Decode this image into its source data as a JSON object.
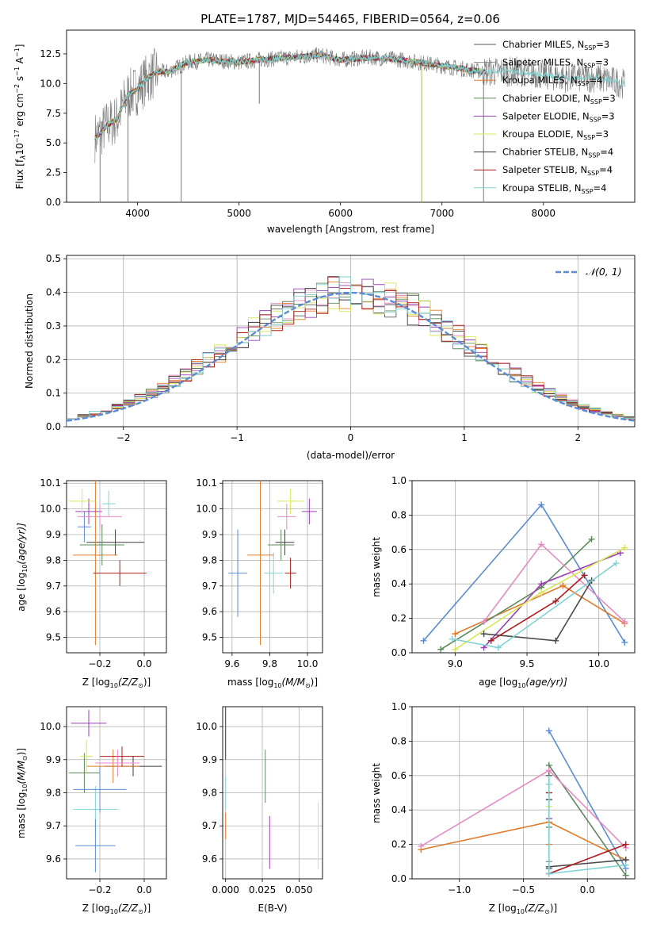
{
  "figure": {
    "title": "PLATE=1787, MJD=54465, FIBERID=0564, z=0.06"
  },
  "colors": {
    "series": [
      "#5a5a5a",
      "#8c8c8c",
      "#e07b2a",
      "#5b8a5b",
      "#9b3fb5",
      "#d9e85a",
      "#3a3a3a",
      "#b01c1c",
      "#7fd3d3"
    ],
    "normal": "#5b8bd6"
  },
  "chart_data": [
    {
      "id": "spectrum",
      "type": "line",
      "xlabel": "wavelength [Angstrom, rest frame]",
      "ylabel": "Flux [f",
      "ylabel_tail": "10",
      "ylabel_exp": "−17",
      "ylabel_end": " erg cm",
      "xlim": [
        3300,
        8900
      ],
      "ylim": [
        0,
        14.5
      ],
      "xticks": [
        4000,
        5000,
        6000,
        7000,
        8000
      ],
      "yticks": [
        0.0,
        2.5,
        5.0,
        7.5,
        10.0,
        12.5
      ],
      "legend_placement": "right",
      "legend": [
        {
          "name": "Chabrier MILES",
          "n": "3"
        },
        {
          "name": "Salpeter MILES",
          "n": "3"
        },
        {
          "name": "Kroupa MILES",
          "n": "4"
        },
        {
          "name": "Chabrier ELODIE",
          "n": "3"
        },
        {
          "name": "Salpeter ELODIE",
          "n": "3"
        },
        {
          "name": "Kroupa ELODIE",
          "n": "3"
        },
        {
          "name": "Chabrier STELIB",
          "n": "4"
        },
        {
          "name": "Salpeter STELIB",
          "n": "4"
        },
        {
          "name": "Kroupa STELIB",
          "n": "4"
        }
      ],
      "data_anchor_x": [
        3600,
        3700,
        3800,
        3900,
        4000,
        4100,
        4200,
        4300,
        4500,
        4700,
        5000,
        5200,
        5500,
        5800,
        6000,
        6300,
        6600,
        7000,
        7400,
        7800,
        8200,
        8500,
        8800
      ],
      "data_anchor_y": [
        5.5,
        6.5,
        7.0,
        9.0,
        9.5,
        10.5,
        11.0,
        11.0,
        11.8,
        12.0,
        11.8,
        12.0,
        12.2,
        12.4,
        12.0,
        12.2,
        12.0,
        11.5,
        11.0,
        11.0,
        10.5,
        10.5,
        10.0
      ]
    },
    {
      "id": "residuals",
      "type": "line",
      "xlabel": "(data-model)/error",
      "ylabel": "Normed distribution",
      "xlim": [
        -2.5,
        2.5
      ],
      "ylim": [
        0,
        0.51
      ],
      "xticks": [
        -2,
        -1,
        0,
        1,
        2
      ],
      "yticks": [
        0.0,
        0.1,
        0.2,
        0.3,
        0.4,
        0.5
      ],
      "grid": true,
      "legend_placement": "top-right",
      "legend_label": "𝒩(0, 1)",
      "bins": 50
    },
    {
      "id": "age-vs-Z",
      "type": "scatter",
      "xlabel": "Z [log",
      "xlabel_tail": "(Z/Z",
      "ylabel": "age  [log",
      "ylabel_tail": "(age/yr)]",
      "xlim": [
        -0.35,
        0.1
      ],
      "ylim": [
        9.44,
        10.11
      ],
      "xticks": [
        -0.2,
        0.0
      ],
      "yticks": [
        9.5,
        9.6,
        9.7,
        9.8,
        9.9,
        10.0,
        10.1
      ],
      "grid": true,
      "points": [
        {
          "x": -0.13,
          "y": 9.87,
          "xerr": 0.13,
          "yerr": 0.05
        },
        {
          "x": -0.16,
          "y": 10.02,
          "xerr": 0.03,
          "yerr": 0.05
        },
        {
          "x": -0.22,
          "y": 9.82,
          "xerr": 0.1,
          "yerr": 0.35
        },
        {
          "x": -0.19,
          "y": 9.86,
          "xerr": 0.1,
          "yerr": 0.08
        },
        {
          "x": -0.25,
          "y": 9.99,
          "xerr": 0.06,
          "yerr": 0.05
        },
        {
          "x": -0.28,
          "y": 10.03,
          "xerr": 0.06,
          "yerr": 0.05
        },
        {
          "x": -0.27,
          "y": 9.93,
          "xerr": 0.03,
          "yerr": 0.06
        },
        {
          "x": -0.11,
          "y": 9.75,
          "xerr": 0.12,
          "yerr": 0.05
        },
        {
          "x": -0.2,
          "y": 9.97,
          "xerr": 0.1,
          "yerr": 0.05
        }
      ]
    },
    {
      "id": "age-vs-mass",
      "type": "scatter",
      "xlabel": "mass [log",
      "xlabel_tail": "(M/M",
      "xlim": [
        9.55,
        10.08
      ],
      "ylim": [
        9.44,
        10.11
      ],
      "xticks": [
        9.6,
        9.8,
        10.0
      ],
      "yticks": [
        9.5,
        9.6,
        9.7,
        9.8,
        9.9,
        10.0,
        10.1
      ],
      "grid": true,
      "points": [
        {
          "x": 9.88,
          "y": 9.87,
          "xerr": 0.05,
          "yerr": 0.05
        },
        {
          "x": 9.82,
          "y": 9.75,
          "xerr": 0.05,
          "yerr": 0.08
        },
        {
          "x": 9.75,
          "y": 9.82,
          "xerr": 0.07,
          "yerr": 0.35
        },
        {
          "x": 9.86,
          "y": 9.86,
          "xerr": 0.07,
          "yerr": 0.06
        },
        {
          "x": 10.01,
          "y": 9.99,
          "xerr": 0.04,
          "yerr": 0.05
        },
        {
          "x": 9.91,
          "y": 10.03,
          "xerr": 0.07,
          "yerr": 0.05
        },
        {
          "x": 9.63,
          "y": 9.75,
          "xerr": 0.05,
          "yerr": 0.17
        },
        {
          "x": 9.91,
          "y": 9.75,
          "xerr": 0.03,
          "yerr": 0.06
        },
        {
          "x": 9.89,
          "y": 9.97,
          "xerr": 0.05,
          "yerr": 0.05
        }
      ]
    },
    {
      "id": "weight-vs-age",
      "type": "line",
      "xlabel": "age  [log",
      "xlabel_tail": "(age/yr)]",
      "ylabel": "mass weight",
      "xlim": [
        8.7,
        10.25
      ],
      "ylim": [
        0,
        1.0
      ],
      "xticks": [
        9.0,
        9.5,
        10.0
      ],
      "yticks": [
        0.0,
        0.2,
        0.4,
        0.6,
        0.8,
        1.0
      ],
      "grid": true,
      "series": [
        {
          "color": "#5b8bd6",
          "x": [
            8.78,
            9.6,
            10.18
          ],
          "y": [
            0.07,
            0.86,
            0.06
          ]
        },
        {
          "color": "#e07b2a",
          "x": [
            9.0,
            9.75,
            10.18
          ],
          "y": [
            0.11,
            0.39,
            0.17
          ]
        },
        {
          "color": "#5b8a5b",
          "x": [
            8.9,
            9.6,
            9.95
          ],
          "y": [
            0.02,
            0.38,
            0.66
          ]
        },
        {
          "color": "#9b3fb5",
          "x": [
            9.2,
            9.6,
            10.15
          ],
          "y": [
            0.03,
            0.4,
            0.58
          ]
        },
        {
          "color": "#e78ac3",
          "x": [
            9.2,
            9.6,
            10.18
          ],
          "y": [
            0.18,
            0.63,
            0.18
          ]
        },
        {
          "color": "#d9e85a",
          "x": [
            9.0,
            9.6,
            10.18
          ],
          "y": [
            0.02,
            0.35,
            0.61
          ]
        },
        {
          "color": "#4a4a4a",
          "x": [
            9.2,
            9.7,
            9.95
          ],
          "y": [
            0.11,
            0.07,
            0.42
          ]
        },
        {
          "color": "#b01c1c",
          "x": [
            9.25,
            9.7,
            9.9
          ],
          "y": [
            0.07,
            0.3,
            0.45
          ]
        },
        {
          "color": "#7fd3d3",
          "x": [
            8.98,
            9.3,
            10.12
          ],
          "y": [
            0.08,
            0.03,
            0.52
          ]
        }
      ]
    },
    {
      "id": "mass-vs-Z",
      "type": "scatter",
      "xlabel": "Z [log",
      "xlabel_tail": "(Z/Z",
      "ylabel": "mass [log",
      "ylabel_tail": "(M/M",
      "xlim": [
        -0.35,
        0.1
      ],
      "ylim": [
        9.54,
        10.06
      ],
      "xticks": [
        -0.2,
        0.0
      ],
      "yticks": [
        9.6,
        9.7,
        9.8,
        9.9,
        10.0
      ],
      "grid": true,
      "points": [
        {
          "x": -0.05,
          "y": 9.88,
          "xerr": 0.13,
          "yerr": 0.03
        },
        {
          "x": -0.22,
          "y": 9.75,
          "xerr": 0.1,
          "yerr": 0.07
        },
        {
          "x": -0.14,
          "y": 9.88,
          "xerr": 0.12,
          "yerr": 0.05
        },
        {
          "x": -0.27,
          "y": 9.86,
          "xerr": 0.07,
          "yerr": 0.06
        },
        {
          "x": -0.25,
          "y": 10.01,
          "xerr": 0.08,
          "yerr": 0.04
        },
        {
          "x": -0.26,
          "y": 9.91,
          "xerr": 0.03,
          "yerr": 0.05
        },
        {
          "x": -0.2,
          "y": 9.81,
          "xerr": 0.12,
          "yerr": 0.07
        },
        {
          "x": -0.1,
          "y": 9.91,
          "xerr": 0.1,
          "yerr": 0.03
        },
        {
          "x": -0.12,
          "y": 9.89,
          "xerr": 0.1,
          "yerr": 0.04
        },
        {
          "x": -0.22,
          "y": 9.64,
          "xerr": 0.09,
          "yerr": 0.08
        }
      ]
    },
    {
      "id": "mass-vs-EBV",
      "type": "scatter",
      "xlabel": "E(B-V)",
      "xlim": [
        -0.002,
        0.066
      ],
      "ylim": [
        9.54,
        10.06
      ],
      "xticks": [
        0.0,
        0.025,
        0.05
      ],
      "xticklabels": [
        "0.000",
        "0.025",
        "0.050"
      ],
      "yticks": [
        9.6,
        9.7,
        9.8,
        9.9,
        10.0
      ],
      "grid": true,
      "points": [
        {
          "x": 0.0,
          "y": 9.98,
          "xerr": 0,
          "yerr": 0.08
        },
        {
          "x": 0.0,
          "y": 9.8,
          "xerr": 0,
          "yerr": 0.05
        },
        {
          "x": 0.0,
          "y": 9.7,
          "xerr": 0,
          "yerr": 0.04
        },
        {
          "x": 0.027,
          "y": 9.85,
          "xerr": 0,
          "yerr": 0.08
        },
        {
          "x": 0.03,
          "y": 9.65,
          "xerr": 0,
          "yerr": 0.08
        },
        {
          "x": 0.063,
          "y": 9.67,
          "xerr": 0,
          "yerr": 0.1
        }
      ]
    },
    {
      "id": "weight-vs-Z",
      "type": "line",
      "xlabel": "Z [log",
      "xlabel_tail": "(Z/Z",
      "ylabel": "mass weight",
      "xlim": [
        -1.37,
        0.37
      ],
      "ylim": [
        0,
        1.0
      ],
      "xticks": [
        -1.0,
        -0.5,
        0.0
      ],
      "yticks": [
        0.0,
        0.2,
        0.4,
        0.6,
        0.8,
        1.0
      ],
      "grid": true,
      "series": [
        {
          "color": "#5b8bd6",
          "x": [
            -0.3,
            0.3
          ],
          "y": [
            0.86,
            0.06
          ]
        },
        {
          "color": "#e07b2a",
          "x": [
            -1.3,
            -0.3,
            0.3
          ],
          "y": [
            0.17,
            0.33,
            0.11
          ]
        },
        {
          "color": "#5b8a5b",
          "x": [
            -0.3,
            0.3
          ],
          "y": [
            0.66,
            0.02
          ]
        },
        {
          "color": "#e78ac3",
          "x": [
            -1.3,
            -0.3,
            0.3
          ],
          "y": [
            0.19,
            0.63,
            0.18
          ]
        },
        {
          "color": "#4a4a4a",
          "x": [
            -0.3,
            0.3
          ],
          "y": [
            0.07,
            0.11
          ]
        },
        {
          "color": "#b01c1c",
          "x": [
            -0.3,
            0.3
          ],
          "y": [
            0.03,
            0.2
          ]
        },
        {
          "color": "#7fd3d3",
          "x": [
            -0.3,
            0.3
          ],
          "y": [
            0.03,
            0.08
          ]
        }
      ],
      "stack": {
        "x": -0.3,
        "ys": [
          0.06,
          0.1,
          0.2,
          0.3,
          0.35,
          0.42,
          0.46,
          0.5,
          0.55,
          0.6
        ]
      }
    }
  ]
}
